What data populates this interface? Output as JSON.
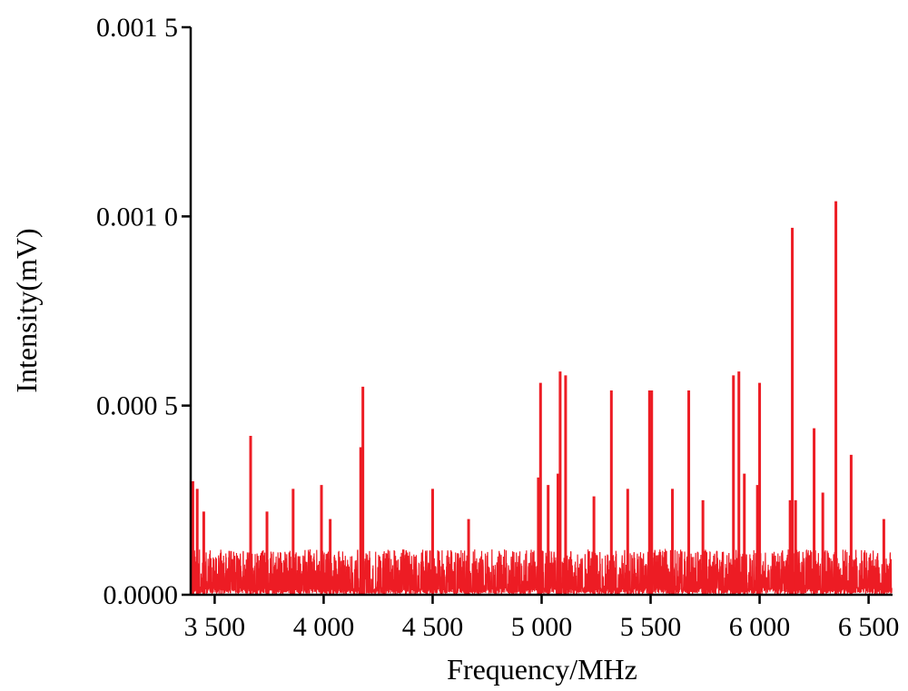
{
  "chart_data": {
    "type": "line",
    "title": "",
    "xlabel": "Frequency/MHz",
    "ylabel": "Intensity(mV)",
    "xlim": [
      3390,
      6610
    ],
    "ylim": [
      0,
      0.0015
    ],
    "x_ticks": [
      3500,
      4000,
      4500,
      5000,
      5500,
      6000,
      6500
    ],
    "x_tick_labels": [
      "3 500",
      "4 000",
      "4 500",
      "5 000",
      "5 500",
      "6 000",
      "6 500"
    ],
    "y_ticks": [
      0,
      0.0005,
      0.001,
      0.0015
    ],
    "y_tick_labels": [
      "0.0000",
      "0.000 5",
      "0.001 0",
      "0.001 5"
    ],
    "grid": false,
    "series": [
      {
        "color": "#ed1c24",
        "noise_floor_max": 0.00012,
        "x": [
          3400,
          3420,
          3450,
          3665,
          3740,
          3860,
          3990,
          4030,
          4170,
          4180,
          4500,
          4665,
          4985,
          4995,
          5030,
          5075,
          5085,
          5110,
          5240,
          5320,
          5395,
          5495,
          5505,
          5600,
          5675,
          5740,
          5880,
          5905,
          5930,
          5990,
          6000,
          6140,
          6150,
          6165,
          6250,
          6290,
          6350,
          6420,
          6570
        ],
        "y": [
          0.0003,
          0.00028,
          0.00022,
          0.00042,
          0.00022,
          0.00028,
          0.00029,
          0.0002,
          0.00039,
          0.00055,
          0.00028,
          0.0002,
          0.00031,
          0.00056,
          0.00029,
          0.00032,
          0.00059,
          0.00058,
          0.00026,
          0.00054,
          0.00028,
          0.00054,
          0.00054,
          0.00028,
          0.00054,
          0.00025,
          0.00058,
          0.00059,
          0.00032,
          0.00029,
          0.00056,
          0.00025,
          0.00097,
          0.00025,
          0.00044,
          0.00027,
          0.00104,
          0.00037,
          0.0002
        ]
      }
    ]
  }
}
